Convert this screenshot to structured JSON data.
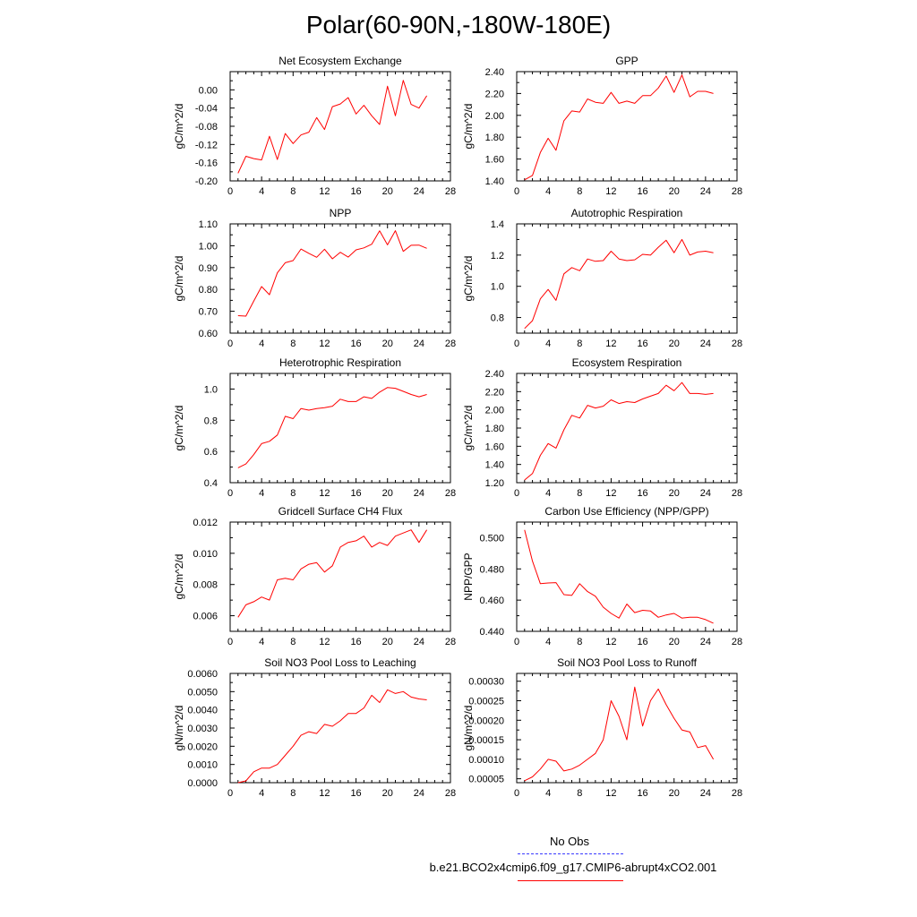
{
  "figure": {
    "title": "Polar(60-90N,-180W-180E)"
  },
  "legend": {
    "obs_label": "No Obs",
    "case_label": "b.e21.BCO2x4cmip6.f09_g17.CMIP6-abrupt4xCO2.001",
    "obs_color": "#3a3aff",
    "case_color": "#ff0000"
  },
  "chart_data": [
    {
      "type": "line",
      "title": "Net Ecosystem Exchange",
      "xlabel": "",
      "ylabel": "gC/m^2/d",
      "xlim": [
        0,
        28
      ],
      "ylim": [
        -0.2,
        0.04
      ],
      "xticks": [
        "0",
        "4",
        "8",
        "12",
        "16",
        "20",
        "24",
        "28"
      ],
      "yticks": [
        "-0.20",
        "-0.16",
        "-0.12",
        "-0.08",
        "-0.04",
        "0.00"
      ],
      "ytick_values": [
        -0.2,
        -0.16,
        -0.12,
        -0.08,
        -0.04,
        0.0
      ],
      "x": [
        1,
        2,
        3,
        4,
        5,
        6,
        7,
        8,
        9,
        10,
        11,
        12,
        13,
        14,
        15,
        16,
        17,
        18,
        19,
        20,
        21,
        22,
        23,
        24,
        25
      ],
      "series": [
        {
          "name": "b.e21.BCO2x4cmip6.f09_g17.CMIP6-abrupt4xCO2.001",
          "color": "#ff0000",
          "values": [
            -0.183,
            -0.146,
            -0.151,
            -0.154,
            -0.102,
            -0.153,
            -0.096,
            -0.118,
            -0.099,
            -0.093,
            -0.061,
            -0.087,
            -0.037,
            -0.031,
            -0.017,
            -0.053,
            -0.034,
            -0.057,
            -0.076,
            0.008,
            -0.057,
            0.021,
            -0.032,
            -0.04,
            -0.013
          ]
        }
      ]
    },
    {
      "type": "line",
      "title": "GPP",
      "xlabel": "",
      "ylabel": "gC/m^2/d",
      "xlim": [
        0,
        28
      ],
      "ylim": [
        1.4,
        2.4
      ],
      "xticks": [
        "0",
        "4",
        "8",
        "12",
        "16",
        "20",
        "24",
        "28"
      ],
      "yticks": [
        "1.40",
        "1.60",
        "1.80",
        "2.00",
        "2.20",
        "2.40"
      ],
      "ytick_values": [
        1.4,
        1.6,
        1.8,
        2.0,
        2.2,
        2.4
      ],
      "x": [
        1,
        2,
        3,
        4,
        5,
        6,
        7,
        8,
        9,
        10,
        11,
        12,
        13,
        14,
        15,
        16,
        17,
        18,
        19,
        20,
        21,
        22,
        23,
        24,
        25
      ],
      "series": [
        {
          "name": "b.e21.BCO2x4cmip6.f09_g17.CMIP6-abrupt4xCO2.001",
          "color": "#ff0000",
          "values": [
            1.41,
            1.45,
            1.66,
            1.79,
            1.68,
            1.95,
            2.04,
            2.03,
            2.15,
            2.12,
            2.11,
            2.21,
            2.11,
            2.13,
            2.11,
            2.18,
            2.18,
            2.25,
            2.36,
            2.21,
            2.37,
            2.17,
            2.22,
            2.22,
            2.2
          ]
        }
      ]
    },
    {
      "type": "line",
      "title": "NPP",
      "xlabel": "",
      "ylabel": "gC/m^2/d",
      "xlim": [
        0,
        28
      ],
      "ylim": [
        0.6,
        1.1
      ],
      "xticks": [
        "0",
        "4",
        "8",
        "12",
        "16",
        "20",
        "24",
        "28"
      ],
      "yticks": [
        "0.60",
        "0.70",
        "0.80",
        "0.90",
        "1.00",
        "1.10"
      ],
      "ytick_values": [
        0.6,
        0.7,
        0.8,
        0.9,
        1.0,
        1.1
      ],
      "x": [
        1,
        2,
        3,
        4,
        5,
        6,
        7,
        8,
        9,
        10,
        11,
        12,
        13,
        14,
        15,
        16,
        17,
        18,
        19,
        20,
        21,
        22,
        23,
        24,
        25
      ],
      "series": [
        {
          "name": "b.e21.BCO2x4cmip6.f09_g17.CMIP6-abrupt4xCO2.001",
          "color": "#ff0000",
          "values": [
            0.68,
            0.678,
            0.747,
            0.813,
            0.776,
            0.876,
            0.922,
            0.932,
            0.985,
            0.965,
            0.947,
            0.984,
            0.94,
            0.97,
            0.948,
            0.981,
            0.99,
            1.007,
            1.068,
            1.004,
            1.069,
            0.974,
            1.002,
            1.003,
            0.988
          ]
        }
      ]
    },
    {
      "type": "line",
      "title": "Autotrophic Respiration",
      "xlabel": "",
      "ylabel": "gC/m^2/d",
      "xlim": [
        0,
        28
      ],
      "ylim": [
        0.7,
        1.4
      ],
      "xticks": [
        "0",
        "4",
        "8",
        "12",
        "16",
        "20",
        "24",
        "28"
      ],
      "yticks": [
        "0.8",
        "1.0",
        "1.2",
        "1.4"
      ],
      "ytick_values": [
        0.8,
        1.0,
        1.2,
        1.4
      ],
      "x": [
        1,
        2,
        3,
        4,
        5,
        6,
        7,
        8,
        9,
        10,
        11,
        12,
        13,
        14,
        15,
        16,
        17,
        18,
        19,
        20,
        21,
        22,
        23,
        24,
        25
      ],
      "series": [
        {
          "name": "b.e21.BCO2x4cmip6.f09_g17.CMIP6-abrupt4xCO2.001",
          "color": "#ff0000",
          "values": [
            0.73,
            0.78,
            0.92,
            0.98,
            0.91,
            1.08,
            1.12,
            1.1,
            1.175,
            1.16,
            1.165,
            1.225,
            1.175,
            1.165,
            1.17,
            1.205,
            1.2,
            1.25,
            1.295,
            1.215,
            1.3,
            1.2,
            1.22,
            1.225,
            1.215
          ]
        }
      ]
    },
    {
      "type": "line",
      "title": "Heterotrophic Respiration",
      "xlabel": "",
      "ylabel": "gC/m^2/d",
      "xlim": [
        0,
        28
      ],
      "ylim": [
        0.4,
        1.1
      ],
      "xticks": [
        "0",
        "4",
        "8",
        "12",
        "16",
        "20",
        "24",
        "28"
      ],
      "yticks": [
        "0.4",
        "0.6",
        "0.8",
        "1.0"
      ],
      "ytick_values": [
        0.4,
        0.6,
        0.8,
        1.0
      ],
      "x": [
        1,
        2,
        3,
        4,
        5,
        6,
        7,
        8,
        9,
        10,
        11,
        12,
        13,
        14,
        15,
        16,
        17,
        18,
        19,
        20,
        21,
        22,
        23,
        24,
        25
      ],
      "series": [
        {
          "name": "b.e21.BCO2x4cmip6.f09_g17.CMIP6-abrupt4xCO2.001",
          "color": "#ff0000",
          "values": [
            0.495,
            0.52,
            0.58,
            0.65,
            0.665,
            0.705,
            0.825,
            0.81,
            0.875,
            0.865,
            0.875,
            0.88,
            0.89,
            0.935,
            0.92,
            0.92,
            0.95,
            0.94,
            0.98,
            1.01,
            1.005,
            0.985,
            0.965,
            0.95,
            0.965
          ]
        }
      ]
    },
    {
      "type": "line",
      "title": "Ecosystem Respiration",
      "xlabel": "",
      "ylabel": "gC/m^2/d",
      "xlim": [
        0,
        28
      ],
      "ylim": [
        1.2,
        2.4
      ],
      "xticks": [
        "0",
        "4",
        "8",
        "12",
        "16",
        "20",
        "24",
        "28"
      ],
      "yticks": [
        "1.20",
        "1.40",
        "1.60",
        "1.80",
        "2.00",
        "2.20",
        "2.40"
      ],
      "ytick_values": [
        1.2,
        1.4,
        1.6,
        1.8,
        2.0,
        2.2,
        2.4
      ],
      "x": [
        1,
        2,
        3,
        4,
        5,
        6,
        7,
        8,
        9,
        10,
        11,
        12,
        13,
        14,
        15,
        16,
        17,
        18,
        19,
        20,
        21,
        22,
        23,
        24,
        25
      ],
      "series": [
        {
          "name": "b.e21.BCO2x4cmip6.f09_g17.CMIP6-abrupt4xCO2.001",
          "color": "#ff0000",
          "values": [
            1.23,
            1.3,
            1.5,
            1.63,
            1.58,
            1.78,
            1.94,
            1.91,
            2.05,
            2.02,
            2.04,
            2.11,
            2.07,
            2.09,
            2.08,
            2.12,
            2.15,
            2.18,
            2.27,
            2.21,
            2.3,
            2.18,
            2.18,
            2.17,
            2.18
          ]
        }
      ]
    },
    {
      "type": "line",
      "title": "Gridcell Surface CH4 Flux",
      "xlabel": "",
      "ylabel": "gC/m^2/d",
      "xlim": [
        0,
        28
      ],
      "ylim": [
        0.005,
        0.012
      ],
      "xticks": [
        "0",
        "4",
        "8",
        "12",
        "16",
        "20",
        "24",
        "28"
      ],
      "yticks": [
        "0.006",
        "0.008",
        "0.010",
        "0.012"
      ],
      "ytick_values": [
        0.006,
        0.008,
        0.01,
        0.012
      ],
      "x": [
        1,
        2,
        3,
        4,
        5,
        6,
        7,
        8,
        9,
        10,
        11,
        12,
        13,
        14,
        15,
        16,
        17,
        18,
        19,
        20,
        21,
        22,
        23,
        24,
        25
      ],
      "series": [
        {
          "name": "b.e21.BCO2x4cmip6.f09_g17.CMIP6-abrupt4xCO2.001",
          "color": "#ff0000",
          "values": [
            0.0059,
            0.0067,
            0.0069,
            0.0072,
            0.007,
            0.0083,
            0.0084,
            0.0083,
            0.009,
            0.0093,
            0.0094,
            0.0088,
            0.0092,
            0.0104,
            0.0107,
            0.0108,
            0.0111,
            0.0104,
            0.0107,
            0.0105,
            0.0111,
            0.0113,
            0.0115,
            0.0107,
            0.0115
          ]
        }
      ]
    },
    {
      "type": "line",
      "title": "Carbon Use Efficiency (NPP/GPP)",
      "xlabel": "",
      "ylabel": "NPP/GPP",
      "xlim": [
        0,
        28
      ],
      "ylim": [
        0.44,
        0.51
      ],
      "xticks": [
        "0",
        "4",
        "8",
        "12",
        "16",
        "20",
        "24",
        "28"
      ],
      "yticks": [
        "0.440",
        "0.460",
        "0.480",
        "0.500"
      ],
      "ytick_values": [
        0.44,
        0.46,
        0.48,
        0.5
      ],
      "x": [
        1,
        2,
        3,
        4,
        5,
        6,
        7,
        8,
        9,
        10,
        11,
        12,
        13,
        14,
        15,
        16,
        17,
        18,
        19,
        20,
        21,
        22,
        23,
        24,
        25
      ],
      "series": [
        {
          "name": "b.e21.BCO2x4cmip6.f09_g17.CMIP6-abrupt4xCO2.001",
          "color": "#ff0000",
          "values": [
            0.505,
            0.485,
            0.4705,
            0.471,
            0.4712,
            0.4635,
            0.463,
            0.4705,
            0.4655,
            0.4625,
            0.4555,
            0.4515,
            0.4485,
            0.4575,
            0.452,
            0.4535,
            0.453,
            0.449,
            0.4505,
            0.4515,
            0.4485,
            0.449,
            0.449,
            0.4475,
            0.4452
          ]
        }
      ]
    },
    {
      "type": "line",
      "title": "Soil NO3 Pool Loss to Leaching",
      "xlabel": "",
      "ylabel": "gN/m^2/d",
      "xlim": [
        0,
        28
      ],
      "ylim": [
        0.0,
        0.006
      ],
      "xticks": [
        "0",
        "4",
        "8",
        "12",
        "16",
        "20",
        "24",
        "28"
      ],
      "yticks": [
        "0.0000",
        "0.0010",
        "0.0020",
        "0.0030",
        "0.0040",
        "0.0050",
        "0.0060"
      ],
      "ytick_values": [
        0.0,
        0.001,
        0.002,
        0.003,
        0.004,
        0.005,
        0.006
      ],
      "x": [
        1,
        2,
        3,
        4,
        5,
        6,
        7,
        8,
        9,
        10,
        11,
        12,
        13,
        14,
        15,
        16,
        17,
        18,
        19,
        20,
        21,
        22,
        23,
        24,
        25
      ],
      "series": [
        {
          "name": "b.e21.BCO2x4cmip6.f09_g17.CMIP6-abrupt4xCO2.001",
          "color": "#ff0000",
          "values": [
            0.0,
            0.0001,
            0.0006,
            0.0008,
            0.0008,
            0.001,
            0.0015,
            0.002,
            0.0026,
            0.0028,
            0.0027,
            0.0032,
            0.0031,
            0.0034,
            0.0038,
            0.0038,
            0.0041,
            0.0048,
            0.0044,
            0.0051,
            0.0049,
            0.005,
            0.0047,
            0.0046,
            0.00455
          ]
        }
      ]
    },
    {
      "type": "line",
      "title": "Soil NO3 Pool Loss to Runoff",
      "xlabel": "",
      "ylabel": "gN/m^2/d",
      "xlim": [
        0,
        28
      ],
      "ylim": [
        4e-05,
        0.00032
      ],
      "xticks": [
        "0",
        "4",
        "8",
        "12",
        "16",
        "20",
        "24",
        "28"
      ],
      "yticks": [
        "0.00005",
        "0.00010",
        "0.00015",
        "0.00020",
        "0.00025",
        "0.00030"
      ],
      "ytick_values": [
        5e-05,
        0.0001,
        0.00015,
        0.0002,
        0.00025,
        0.0003
      ],
      "x": [
        1,
        2,
        3,
        4,
        5,
        6,
        7,
        8,
        9,
        10,
        11,
        12,
        13,
        14,
        15,
        16,
        17,
        18,
        19,
        20,
        21,
        22,
        23,
        24,
        25
      ],
      "series": [
        {
          "name": "b.e21.BCO2x4cmip6.f09_g17.CMIP6-abrupt4xCO2.001",
          "color": "#ff0000",
          "values": [
            4.5e-05,
            5.5e-05,
            7.5e-05,
            0.0001,
            9.5e-05,
            7e-05,
            7.5e-05,
            8.5e-05,
            0.0001,
            0.000115,
            0.00015,
            0.00025,
            0.00021,
            0.00015,
            0.000285,
            0.000185,
            0.00025,
            0.00028,
            0.00024,
            0.000205,
            0.000175,
            0.00017,
            0.00013,
            0.000135,
            0.0001
          ]
        }
      ]
    }
  ]
}
